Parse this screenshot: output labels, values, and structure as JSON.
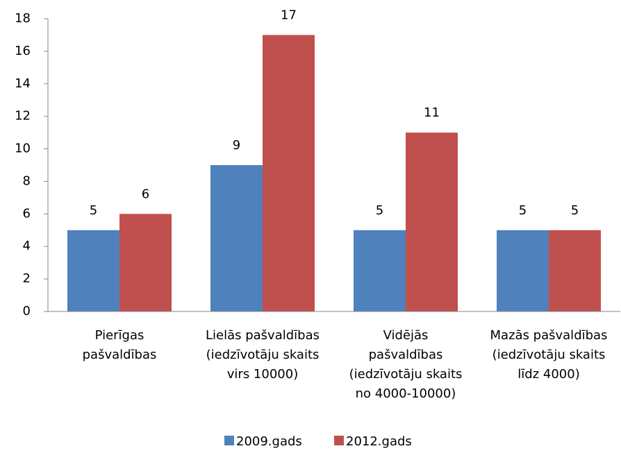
{
  "chart_data": {
    "type": "bar",
    "categories": [
      "Pierīgas\npašvaldības",
      "Lielās pašvaldības\n(iedzīvotāju skaits\nvirs 10000)",
      "Vidējās\npašvaldības\n(iedzīvotāju skaits\nno 4000-10000)",
      "Mazās pašvaldības\n(iedzīvotāju skaits\nlīdz 4000)"
    ],
    "series": [
      {
        "name": "2009.gads",
        "color": "#4f81bd",
        "values": [
          5,
          9,
          5,
          5
        ]
      },
      {
        "name": "2012.gads",
        "color": "#c0504d",
        "values": [
          6,
          17,
          11,
          5
        ]
      }
    ],
    "ylim": [
      0,
      18
    ],
    "yticks": [
      0,
      2,
      4,
      6,
      8,
      10,
      12,
      14,
      16,
      18
    ],
    "legend": "bottom"
  }
}
